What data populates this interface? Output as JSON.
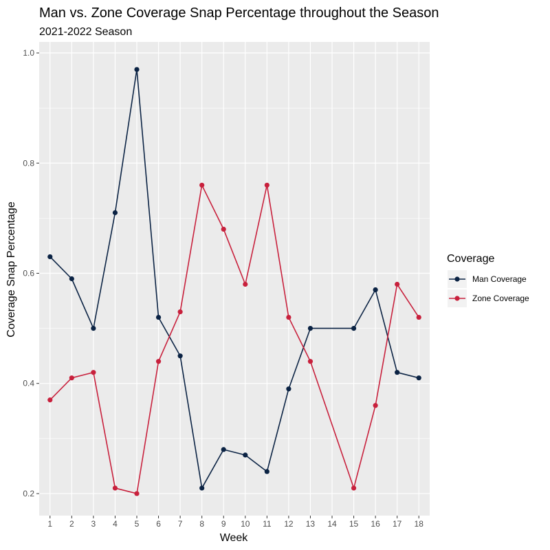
{
  "chart_data": {
    "type": "line",
    "title": "Man vs. Zone Coverage Snap Percentage throughout the Season",
    "subtitle": "2021-2022 Season",
    "xlabel": "Week",
    "ylabel": "Coverage Snap Percentage",
    "xlim": [
      0.5,
      18.5
    ],
    "ylim": [
      0.16,
      1.02
    ],
    "x_ticks": [
      1,
      2,
      3,
      4,
      5,
      6,
      7,
      8,
      9,
      10,
      11,
      12,
      13,
      14,
      15,
      16,
      17,
      18
    ],
    "y_ticks": [
      0.2,
      0.4,
      0.6,
      0.8,
      1.0
    ],
    "y_tick_labels": [
      "0.2",
      "0.4",
      "0.6",
      "0.8",
      "1.0"
    ],
    "grid": true,
    "legend": {
      "title": "Coverage",
      "position": "right"
    },
    "series": [
      {
        "name": "Man Coverage",
        "color": "#0b2344",
        "x": [
          1,
          2,
          3,
          4,
          5,
          6,
          7,
          8,
          9,
          10,
          11,
          12,
          13,
          15,
          16,
          17,
          18
        ],
        "y": [
          0.63,
          0.59,
          0.5,
          0.71,
          0.97,
          0.52,
          0.45,
          0.21,
          0.28,
          0.27,
          0.24,
          0.39,
          0.5,
          0.5,
          0.57,
          0.42,
          0.41
        ]
      },
      {
        "name": "Zone Coverage",
        "color": "#c8203c",
        "x": [
          1,
          2,
          3,
          4,
          5,
          6,
          7,
          8,
          9,
          10,
          11,
          12,
          13,
          15,
          16,
          17,
          18
        ],
        "y": [
          0.37,
          0.41,
          0.42,
          0.21,
          0.2,
          0.44,
          0.53,
          0.76,
          0.68,
          0.58,
          0.76,
          0.52,
          0.44,
          0.21,
          0.36,
          0.58,
          0.52
        ]
      }
    ]
  }
}
